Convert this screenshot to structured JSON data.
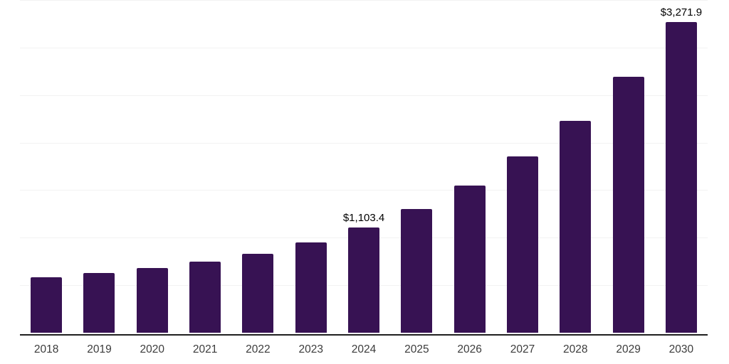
{
  "chart_data": {
    "type": "bar",
    "title": "",
    "categories": [
      "2018",
      "2019",
      "2020",
      "2021",
      "2022",
      "2023",
      "2024",
      "2025",
      "2026",
      "2027",
      "2028",
      "2029",
      "2030"
    ],
    "series": [
      {
        "name": "market-size",
        "values": [
          586,
          630,
          680,
          749,
          833,
          952,
          1103.4,
          1300,
          1551,
          1853,
          2232,
          2692,
          3271.9
        ]
      }
    ],
    "labeled_points": [
      {
        "category": "2024",
        "label": "$1,103.4"
      },
      {
        "category": "2030",
        "label": "$3,271.9"
      }
    ],
    "xlabel": "",
    "ylabel": "",
    "ylim": [
      0,
      3500
    ],
    "gridline_step": 500,
    "grid": "horizontal",
    "legend": "none",
    "colors": {
      "bar": "#371253",
      "grid": "#f2f2f2",
      "axis": "#1f1f1f",
      "tick_label": "#3c3c3c",
      "data_label": "#000000",
      "background": "#ffffff"
    }
  }
}
